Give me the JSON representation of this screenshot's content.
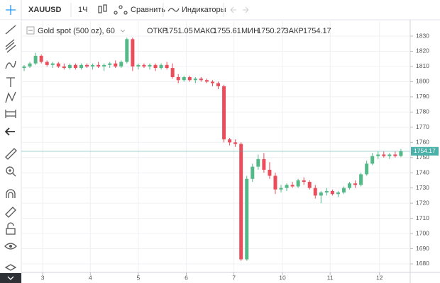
{
  "toolbar": {
    "symbol": "XAUUSD",
    "interval": "1Ч",
    "compare": "Сравнить",
    "indicators": "Индикаторы"
  },
  "chart_data": {
    "type": "candlestick",
    "title": "Gold spot (500 oz), 60",
    "legend_labels": {
      "open": "ОТКР",
      "high": "МАКС",
      "low": "МИН",
      "close": "ЗАКР"
    },
    "up_color": "#53b987",
    "down_color": "#eb4d5c",
    "last_price_color": "#4bb0a8",
    "grid": true,
    "open": [
      1809,
      1810,
      1812,
      1817,
      1813,
      1811,
      1812,
      1810,
      1809,
      1811,
      1809,
      1811,
      1810,
      1811,
      1810,
      1811,
      1812,
      1810,
      1813,
      1828,
      1810,
      1811,
      1810,
      1811,
      1809,
      1811,
      1809,
      1803,
      1801,
      1803,
      1801,
      1802,
      1801,
      1800,
      1799,
      1797,
      1762,
      1760,
      1759,
      1683,
      1736,
      1744,
      1749,
      1742,
      1738,
      1729,
      1730,
      1732,
      1731,
      1735,
      1734,
      1730,
      1725,
      1727,
      1728,
      1726,
      1727,
      1730,
      1733,
      1732,
      1739,
      1746,
      1751,
      1752,
      1751,
      1752,
      1751.05
    ],
    "high": [
      1811,
      1813,
      1819,
      1818,
      1814,
      1813,
      1813,
      1812,
      1812,
      1812,
      1812,
      1812,
      1812,
      1813,
      1812,
      1813,
      1814,
      1814,
      1829,
      1829,
      1812,
      1812,
      1812,
      1812,
      1812,
      1813,
      1812,
      1805,
      1804,
      1804,
      1803,
      1803,
      1802,
      1801,
      1800,
      1798,
      1763,
      1762,
      1760,
      1738,
      1746,
      1752,
      1753,
      1747,
      1740,
      1732,
      1733,
      1734,
      1736,
      1737,
      1735,
      1732,
      1728,
      1730,
      1729,
      1728,
      1731,
      1734,
      1735,
      1740,
      1748,
      1753,
      1754,
      1754,
      1753,
      1754,
      1755.61
    ],
    "low": [
      1807,
      1809,
      1811,
      1812,
      1810,
      1809,
      1809,
      1808,
      1808,
      1808,
      1808,
      1809,
      1808,
      1809,
      1807,
      1809,
      1809,
      1809,
      1812,
      1807,
      1808,
      1809,
      1808,
      1807,
      1808,
      1808,
      1802,
      1799,
      1800,
      1800,
      1799,
      1800,
      1799,
      1797,
      1795,
      1760,
      1758,
      1757,
      1682,
      1682,
      1734,
      1742,
      1740,
      1736,
      1726,
      1727,
      1728,
      1730,
      1730,
      1732,
      1729,
      1723,
      1720,
      1725,
      1725,
      1724,
      1726,
      1729,
      1730,
      1731,
      1738,
      1745,
      1749,
      1750,
      1749,
      1750,
      1750.27
    ],
    "close": [
      1810,
      1812,
      1817,
      1813,
      1811,
      1812,
      1810,
      1809,
      1811,
      1809,
      1811,
      1810,
      1811,
      1810,
      1811,
      1812,
      1810,
      1813,
      1828,
      1810,
      1811,
      1810,
      1811,
      1809,
      1811,
      1809,
      1803,
      1801,
      1803,
      1801,
      1802,
      1801,
      1800,
      1799,
      1797,
      1762,
      1760,
      1759,
      1683,
      1736,
      1744,
      1749,
      1742,
      1738,
      1729,
      1730,
      1732,
      1731,
      1735,
      1734,
      1730,
      1725,
      1727,
      1728,
      1726,
      1727,
      1730,
      1733,
      1732,
      1739,
      1746,
      1751,
      1752,
      1751,
      1752,
      1751,
      1754.17
    ],
    "xlim": [
      -0.5,
      67.625
    ],
    "xticks": [
      {
        "value": 3.25,
        "label": "3"
      },
      {
        "value": 11.6,
        "label": "4"
      },
      {
        "value": 20,
        "label": "5"
      },
      {
        "value": 28.4,
        "label": "6"
      },
      {
        "value": 36.75,
        "label": "7"
      },
      {
        "value": 45.25,
        "label": "10"
      },
      {
        "value": 53.6,
        "label": "11"
      },
      {
        "value": 62.25,
        "label": "12"
      }
    ],
    "ylim": [
      1674.4,
      1839.8
    ],
    "yticks": [
      1680,
      1690,
      1700,
      1710,
      1720,
      1730,
      1740,
      1750,
      1760,
      1770,
      1780,
      1790,
      1800,
      1810,
      1820,
      1830
    ]
  }
}
